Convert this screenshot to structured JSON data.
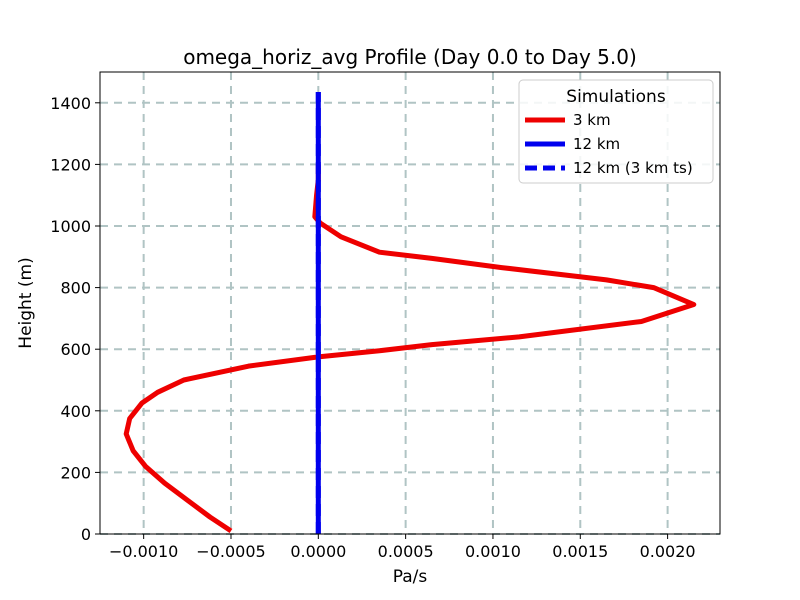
{
  "chart_data": {
    "type": "line",
    "title": "omega_horiz_avg Profile (Day 0.0 to Day 5.0)",
    "xlabel": "Pa/s",
    "ylabel": "Height (m)",
    "xlim": [
      -0.00125,
      0.0023
    ],
    "ylim": [
      0,
      1500
    ],
    "xticks": [
      -0.001,
      -0.0005,
      0.0,
      0.0005,
      0.001,
      0.0015,
      0.002
    ],
    "xtick_labels": [
      "−0.0010",
      "−0.0005",
      "0.0000",
      "0.0005",
      "0.0010",
      "0.0015",
      "0.0020"
    ],
    "yticks": [
      0,
      200,
      400,
      600,
      800,
      1000,
      1200,
      1400
    ],
    "ytick_labels": [
      "0",
      "200",
      "400",
      "600",
      "800",
      "1000",
      "1200",
      "1400"
    ],
    "grid": true,
    "legend": {
      "title": "Simulations",
      "placement": "top-right"
    },
    "series": [
      {
        "name": "3 km",
        "color": "#ee0000",
        "style": "solid",
        "points": [
          [
            -0.0005,
            10
          ],
          [
            -0.00062,
            55
          ],
          [
            -0.00075,
            110
          ],
          [
            -0.00088,
            165
          ],
          [
            -0.00099,
            220
          ],
          [
            -0.00106,
            270
          ],
          [
            -0.0011,
            325
          ],
          [
            -0.00108,
            375
          ],
          [
            -0.00101,
            425
          ],
          [
            -0.00092,
            460
          ],
          [
            -0.00077,
            500
          ],
          [
            -0.0004,
            545
          ],
          [
            0.0,
            575
          ],
          [
            0.00035,
            595
          ],
          [
            0.00065,
            615
          ],
          [
            0.00115,
            640
          ],
          [
            0.00185,
            690
          ],
          [
            0.00215,
            745
          ],
          [
            0.00192,
            800
          ],
          [
            0.00165,
            825
          ],
          [
            0.00105,
            865
          ],
          [
            0.00065,
            895
          ],
          [
            0.00035,
            915
          ],
          [
            0.00013,
            965
          ],
          [
            1e-05,
            1010
          ],
          [
            -2e-05,
            1030
          ],
          [
            -1e-05,
            1100
          ],
          [
            0.0,
            1150
          ],
          [
            0.0,
            1200
          ]
        ]
      },
      {
        "name": "12 km",
        "color": "#0000ee",
        "style": "solid",
        "points": [
          [
            0.0,
            0
          ],
          [
            0.0,
            1435
          ]
        ]
      },
      {
        "name": "12 km (3 km ts)",
        "color": "#0000ee",
        "style": "dashed",
        "points": [
          [
            0.0,
            0
          ],
          [
            0.0,
            1435
          ]
        ]
      }
    ]
  }
}
